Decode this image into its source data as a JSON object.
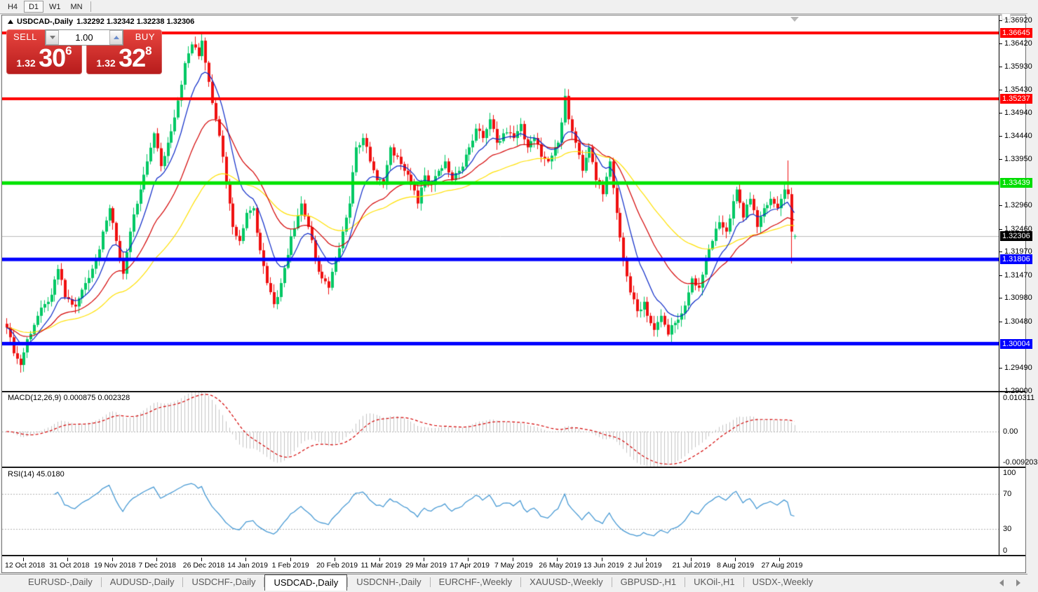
{
  "toolbar": {
    "timeframes": [
      {
        "label": "H4",
        "active": false
      },
      {
        "label": "D1",
        "active": true
      },
      {
        "label": "W1",
        "active": false
      },
      {
        "label": "MN",
        "active": false
      }
    ]
  },
  "chart": {
    "title_symbol": "USDCAD-,Daily",
    "title_ohlc": "1.32292 1.32342 1.32238 1.32306",
    "trade_panel": {
      "sell_label": "SELL",
      "buy_label": "BUY",
      "volume": "1.00",
      "sell_price_small": "1.32",
      "sell_price_big": "30",
      "sell_price_sup": "6",
      "buy_price_small": "1.32",
      "buy_price_big": "32",
      "buy_price_sup": "8"
    }
  },
  "chart_data": {
    "type": "candlestick",
    "symbol": "USDCAD",
    "timeframe": "Daily",
    "bars": 231,
    "ohlc_last": {
      "open": 1.32292,
      "high": 1.32342,
      "low": 1.32238,
      "close": 1.32306
    },
    "current_price": 1.32306,
    "y_axis": {
      "min": 1.28995,
      "max": 1.36975,
      "tick_labels": [
        "1.36920",
        "1.36420",
        "1.35930",
        "1.35430",
        "1.34940",
        "1.34440",
        "1.33950",
        "1.32960",
        "1.32460",
        "1.31970",
        "1.31470",
        "1.30980",
        "1.30480",
        "1.29490",
        "1.29000"
      ],
      "tick_values": [
        1.3692,
        1.3642,
        1.3593,
        1.3543,
        1.3494,
        1.3444,
        1.3395,
        1.3296,
        1.3246,
        1.3197,
        1.3147,
        1.3098,
        1.3048,
        1.2949,
        1.29
      ]
    },
    "horizontal_lines": [
      {
        "price": 1.36645,
        "color": "#ff0000",
        "width": 4
      },
      {
        "price": 1.35237,
        "color": "#ff0000",
        "width": 4
      },
      {
        "price": 1.33439,
        "color": "#00e400",
        "width": 5
      },
      {
        "price": 1.31806,
        "color": "#0000ff",
        "width": 5
      },
      {
        "price": 1.30004,
        "color": "#0000ff",
        "width": 5
      }
    ],
    "price_badges": [
      {
        "label": "1.36645",
        "price": 1.36645,
        "bg": "#ff0000",
        "fg": "#ffffff"
      },
      {
        "label": "1.35237",
        "price": 1.35237,
        "bg": "#ff0000",
        "fg": "#ffffff"
      },
      {
        "label": "1.33439",
        "price": 1.33439,
        "bg": "#00dd00",
        "fg": "#ffffff"
      },
      {
        "label": "1.32306",
        "price": 1.32306,
        "bg": "#000000",
        "fg": "#ffffff"
      },
      {
        "label": "1.31806",
        "price": 1.31806,
        "bg": "#0000ff",
        "fg": "#ffffff"
      },
      {
        "label": "1.30004",
        "price": 1.30004,
        "bg": "#0000ff",
        "fg": "#ffffff"
      }
    ],
    "price_path": [
      [
        0,
        1.3035
      ],
      [
        2,
        1.298
      ],
      [
        4,
        1.2955
      ],
      [
        6,
        1.301
      ],
      [
        9,
        1.306
      ],
      [
        12,
        1.309
      ],
      [
        13,
        1.3105
      ],
      [
        15,
        1.316
      ],
      [
        17,
        1.31
      ],
      [
        20,
        1.308
      ],
      [
        23,
        1.313
      ],
      [
        26,
        1.318
      ],
      [
        28,
        1.324
      ],
      [
        30,
        1.329
      ],
      [
        32,
        1.322
      ],
      [
        34,
        1.315
      ],
      [
        36,
        1.324
      ],
      [
        39,
        1.333
      ],
      [
        41,
        1.339
      ],
      [
        43,
        1.345
      ],
      [
        45,
        1.338
      ],
      [
        47,
        1.343
      ],
      [
        50,
        1.352
      ],
      [
        52,
        1.36
      ],
      [
        54,
        1.364
      ],
      [
        56,
        1.3615
      ],
      [
        57,
        1.3648
      ],
      [
        59,
        1.356
      ],
      [
        61,
        1.348
      ],
      [
        63,
        1.34
      ],
      [
        65,
        1.33
      ],
      [
        66,
        1.325
      ],
      [
        68,
        1.322
      ],
      [
        70,
        1.328
      ],
      [
        72,
        1.329
      ],
      [
        74,
        1.32
      ],
      [
        76,
        1.313
      ],
      [
        78,
        1.3085
      ],
      [
        80,
        1.313
      ],
      [
        83,
        1.323
      ],
      [
        86,
        1.33
      ],
      [
        88,
        1.325
      ],
      [
        90,
        1.318
      ],
      [
        92,
        1.314
      ],
      [
        94,
        1.312
      ],
      [
        96,
        1.318
      ],
      [
        98,
        1.324
      ],
      [
        100,
        1.33
      ],
      [
        102,
        1.342
      ],
      [
        104,
        1.344
      ],
      [
        106,
        1.339
      ],
      [
        108,
        1.335
      ],
      [
        110,
        1.334
      ],
      [
        112,
        1.342
      ],
      [
        114,
        1.34
      ],
      [
        116,
        1.337
      ],
      [
        118,
        1.334
      ],
      [
        120,
        1.33
      ],
      [
        122,
        1.336
      ],
      [
        124,
        1.334
      ],
      [
        126,
        1.337
      ],
      [
        128,
        1.339
      ],
      [
        130,
        1.335
      ],
      [
        132,
        1.337
      ],
      [
        135,
        1.342
      ],
      [
        137,
        1.346
      ],
      [
        139,
        1.344
      ],
      [
        141,
        1.348
      ],
      [
        143,
        1.343
      ],
      [
        145,
        1.345
      ],
      [
        148,
        1.344
      ],
      [
        150,
        1.347
      ],
      [
        152,
        1.342
      ],
      [
        154,
        1.344
      ],
      [
        156,
        1.34
      ],
      [
        158,
        1.339
      ],
      [
        160,
        1.342
      ],
      [
        161,
        1.343
      ],
      [
        163,
        1.353
      ],
      [
        164,
        1.348
      ],
      [
        166,
        1.343
      ],
      [
        168,
        1.337
      ],
      [
        170,
        1.342
      ],
      [
        172,
        1.335
      ],
      [
        174,
        1.332
      ],
      [
        176,
        1.339
      ],
      [
        178,
        1.328
      ],
      [
        180,
        1.318
      ],
      [
        182,
        1.311
      ],
      [
        184,
        1.307
      ],
      [
        186,
        1.309
      ],
      [
        187,
        1.306
      ],
      [
        189,
        1.303
      ],
      [
        191,
        1.306
      ],
      [
        193,
        1.302
      ],
      [
        195,
        1.3045
      ],
      [
        197,
        1.3065
      ],
      [
        199,
        1.311
      ],
      [
        200,
        1.314
      ],
      [
        202,
        1.312
      ],
      [
        204,
        1.318
      ],
      [
        206,
        1.322
      ],
      [
        208,
        1.326
      ],
      [
        210,
        1.324
      ],
      [
        212,
        1.3305
      ],
      [
        213,
        1.333
      ],
      [
        215,
        1.327
      ],
      [
        217,
        1.331
      ],
      [
        219,
        1.325
      ],
      [
        221,
        1.329
      ],
      [
        223,
        1.331
      ],
      [
        225,
        1.329
      ],
      [
        226,
        1.331
      ],
      [
        227,
        1.333
      ],
      [
        228,
        1.332
      ],
      [
        229,
        1.324
      ],
      [
        230,
        1.32306
      ]
    ],
    "spike_overrides": {
      "57": {
        "high": 1.3664
      },
      "193": {
        "low": 1.3016
      },
      "228": {
        "high": 1.3392
      },
      "229": {
        "low": 1.3172
      },
      "230": {
        "open": 1.32292,
        "high": 1.32342,
        "low": 1.32238,
        "close": 1.32306
      }
    },
    "moving_averages": [
      {
        "type": "ema",
        "period": 10,
        "color": "#0a28c8"
      },
      {
        "type": "ema",
        "period": 25,
        "color": "#d40000"
      },
      {
        "type": "ema",
        "period": 52,
        "color": "#ffe100"
      }
    ],
    "x_axis_labels": [
      "12 Oct 2018",
      "31 Oct 2018",
      "19 Nov 2018",
      "7 Dec 2018",
      "26 Dec 2018",
      "14 Jan 2019",
      "1 Feb 2019",
      "20 Feb 2019",
      "11 Mar 2019",
      "29 Mar 2019",
      "17 Apr 2019",
      "7 May 2019",
      "26 May 2019",
      "13 Jun 2019",
      "2 Jul 2019",
      "21 Jul 2019",
      "8 Aug 2019",
      "27 Aug 2019"
    ],
    "indicators": {
      "macd": {
        "label": "MACD(12,26,9) 0.000875 0.002328",
        "fast": 12,
        "slow": 26,
        "signal": 9,
        "value": 0.000875,
        "signal_value": 0.002328,
        "range_max": 0.010311,
        "range_min": -0.009203,
        "axis_labels": [
          "0.010311",
          "0.00",
          "-0.009203"
        ],
        "histogram_color": "#c4c4c4",
        "signal_color": "#d40000"
      },
      "rsi": {
        "label": "RSI(14) 45.0180",
        "period": 14,
        "value": 45.018,
        "levels": [
          70,
          30
        ],
        "axis_labels": [
          "100",
          "70",
          "30",
          "0"
        ],
        "axis_values": [
          100,
          70,
          30,
          0
        ],
        "line_color": "#4699d4"
      }
    },
    "colors": {
      "up_candle": "#00c864",
      "down_candle": "#ef1010",
      "current_price_line": "#bcbcbc",
      "level_dotted": "#b4b4b4",
      "background": "#ffffff"
    }
  },
  "tabs": {
    "items": [
      "EURUSD-,Daily",
      "AUDUSD-,Daily",
      "USDCHF-,Daily",
      "USDCAD-,Daily",
      "USDCNH-,Daily",
      "EURCHF-,Weekly",
      "XAUUSD-,Weekly",
      "GBPUSD-,H1",
      "UKOil-,H1",
      "USDX-,Weekly"
    ],
    "active_index": 3
  }
}
